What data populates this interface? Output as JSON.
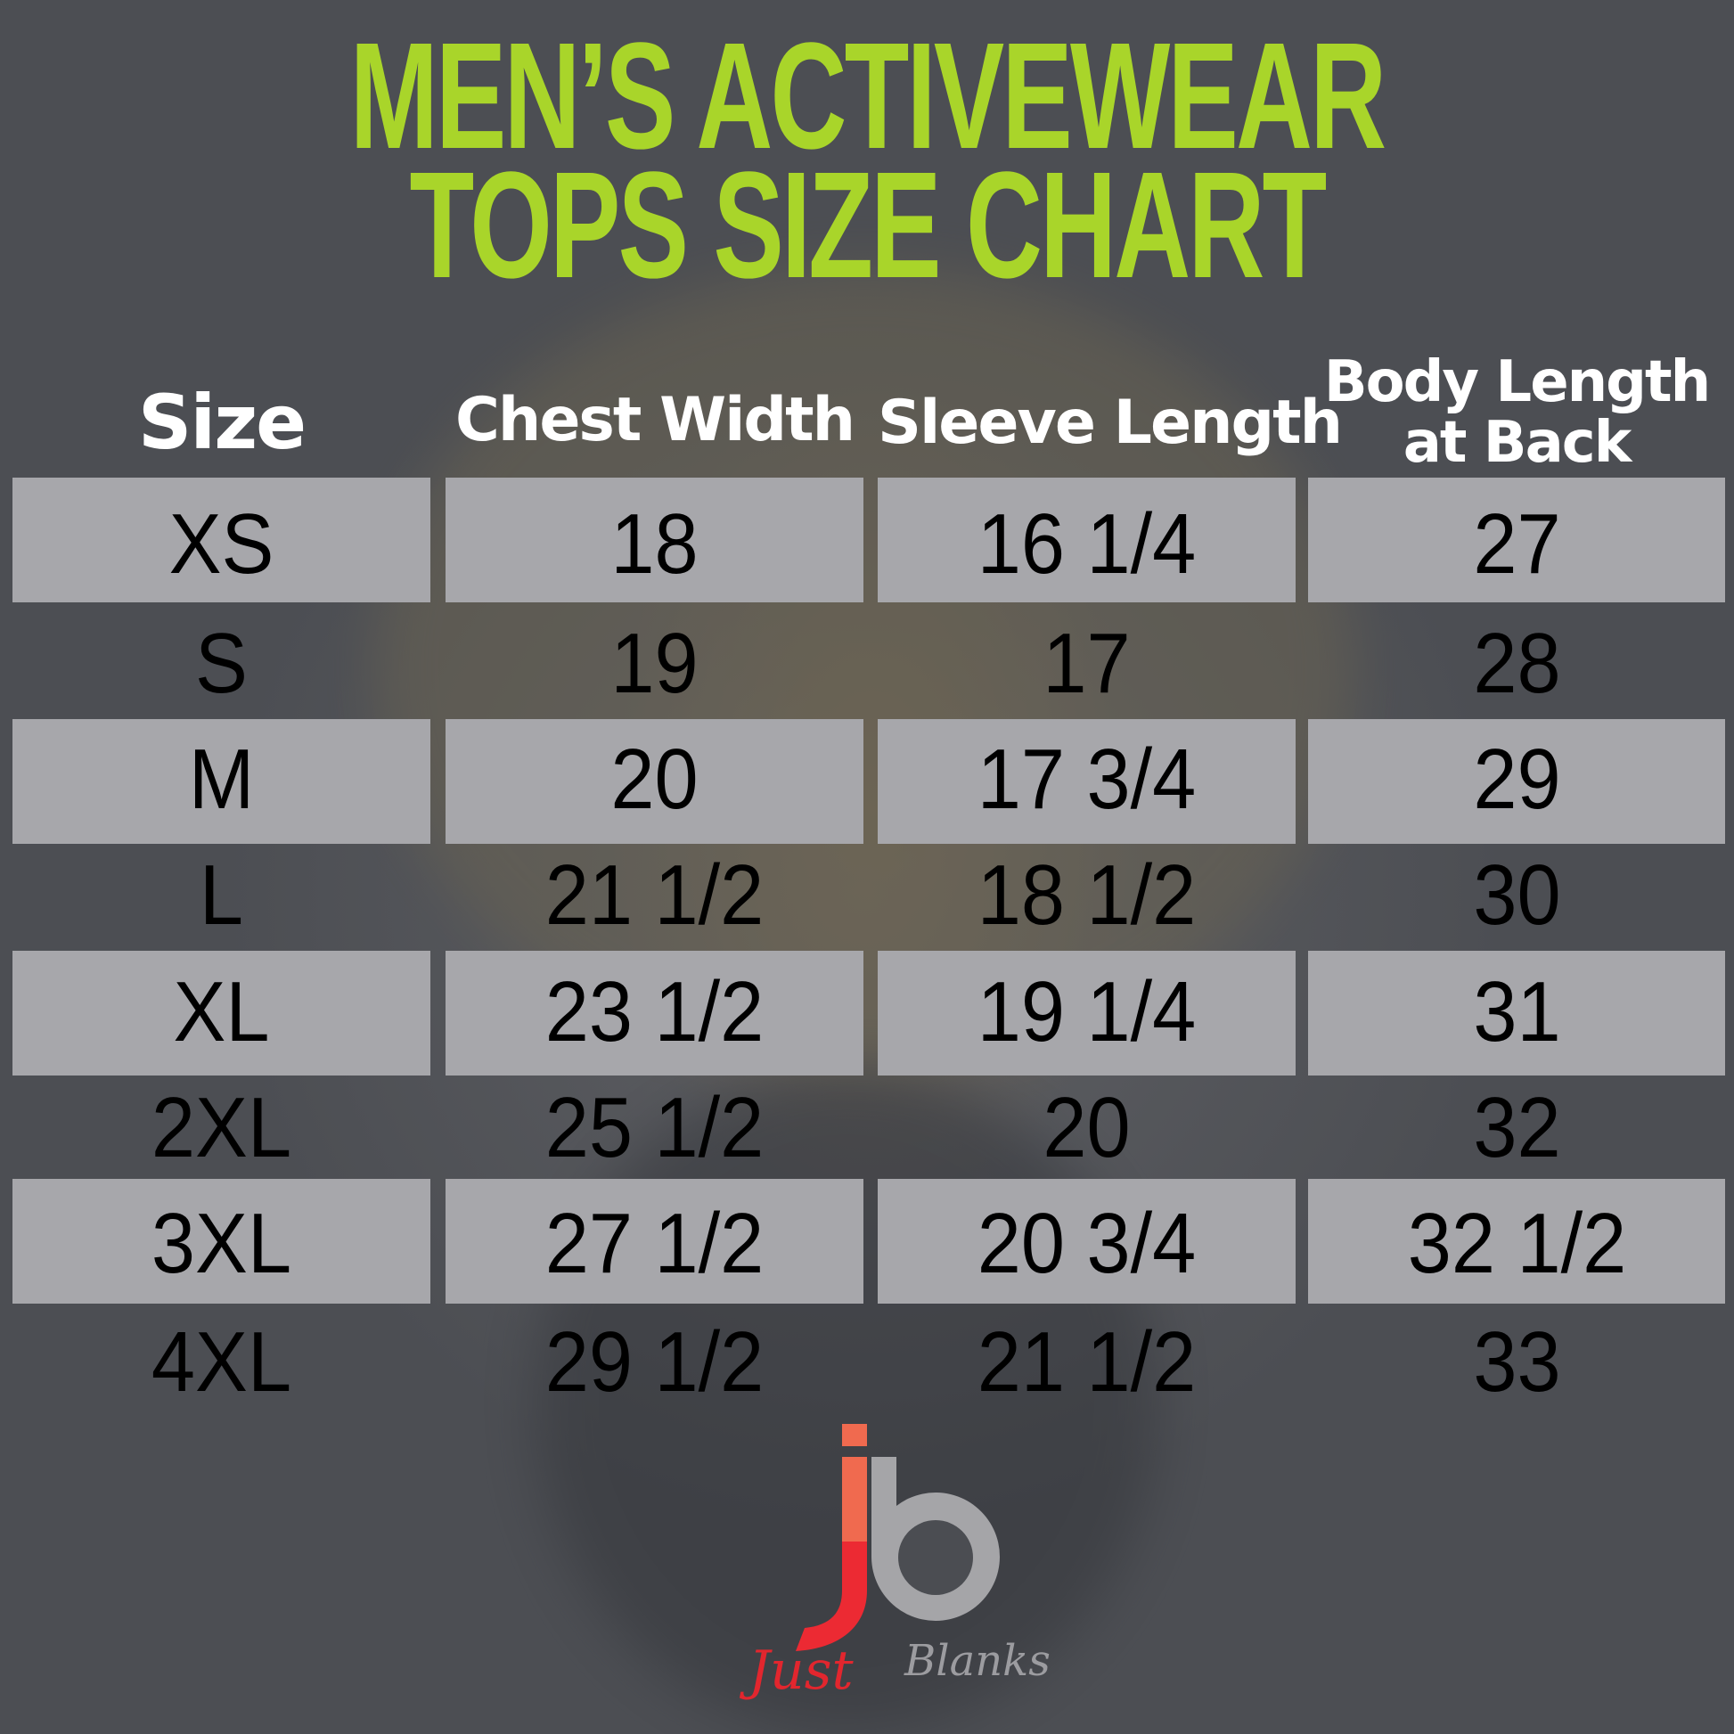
{
  "title": {
    "line1": "MEN’S ACTIVEWEAR",
    "line2": "TOPS SIZE CHART",
    "color": "#a9d52a"
  },
  "table": {
    "headers": [
      "Size",
      "Chest Width",
      "Sleeve Length",
      "Body Length",
      "at Back"
    ],
    "rows": [
      [
        "XS",
        "18",
        "16 1/4",
        "27"
      ],
      [
        "S",
        "19",
        "17",
        "28"
      ],
      [
        "M",
        "20",
        "17 3/4",
        "29"
      ],
      [
        "L",
        "21 1/2",
        "18 1/2",
        "30"
      ],
      [
        "XL",
        "23 1/2",
        "19 1/4",
        "31"
      ],
      [
        "2XL",
        "25 1/2",
        "20",
        "32"
      ],
      [
        "3XL",
        "27 1/2",
        "20 3/4",
        "32 1/2"
      ],
      [
        "4XL",
        "29 1/2",
        "21 1/2",
        "33"
      ]
    ]
  },
  "logo": {
    "mark": "jb",
    "text1": "Just",
    "text2": "Blanks"
  }
}
